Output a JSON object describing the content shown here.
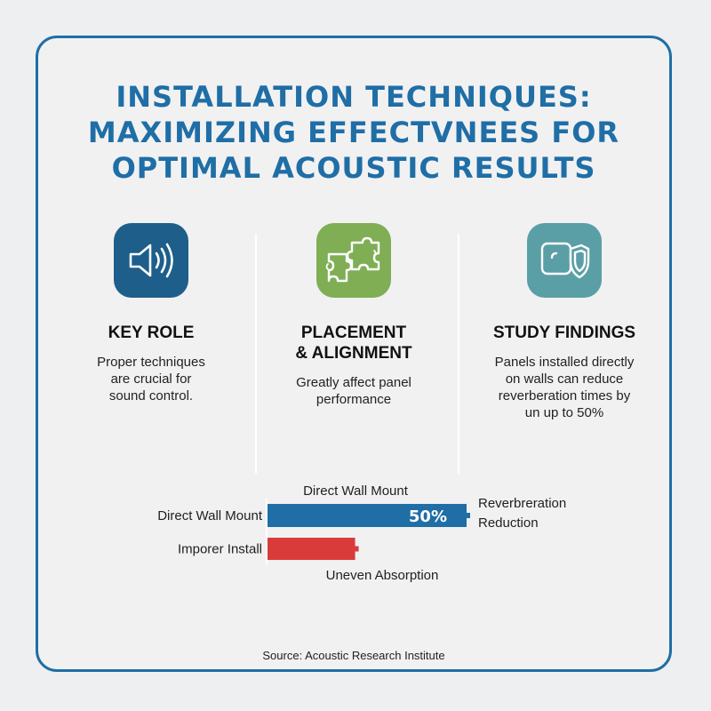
{
  "title": {
    "line1": "INSTALLATION TECHNIQUES:",
    "line2": "MAXIMIZING EFFECTVNEES FOR",
    "line3": "OPTIMAL ACOUSTIC RESULTS"
  },
  "columns": [
    {
      "icon": "speaker-icon",
      "color": "#1d5f8a",
      "heading": [
        "KEY ROLE"
      ],
      "desc": [
        "Proper techniques",
        "are crucial for",
        "sound control."
      ]
    },
    {
      "icon": "puzzle-icon",
      "color": "#7fae55",
      "heading": [
        "PLACEMENT",
        "& ALIGNMENT"
      ],
      "desc": [
        "Greatly affect panel",
        "performance"
      ]
    },
    {
      "icon": "shield-icon",
      "color": "#5a9fa5",
      "heading": [
        "STUDY FINDINGS"
      ],
      "desc": [
        "Panels installed directly",
        "on walls can reduce",
        "reverberation times by",
        "un up to 50%"
      ]
    }
  ],
  "chart_data": {
    "type": "bar",
    "orientation": "horizontal",
    "categories": [
      "Direct Wall Mount",
      "Imporer Install"
    ],
    "values": [
      50,
      22
    ],
    "value_labels": [
      "50%",
      ""
    ],
    "colors": [
      "#1f6ea6",
      "#d93b3b"
    ],
    "annotations": {
      "top": "Direct Wall Mount",
      "right_line1": "Reverbreration",
      "right_line2": "Reduction",
      "bottom": "Uneven Absorption"
    },
    "xlim": [
      0,
      50
    ]
  },
  "source": "Source: Acoustic Research Institute"
}
